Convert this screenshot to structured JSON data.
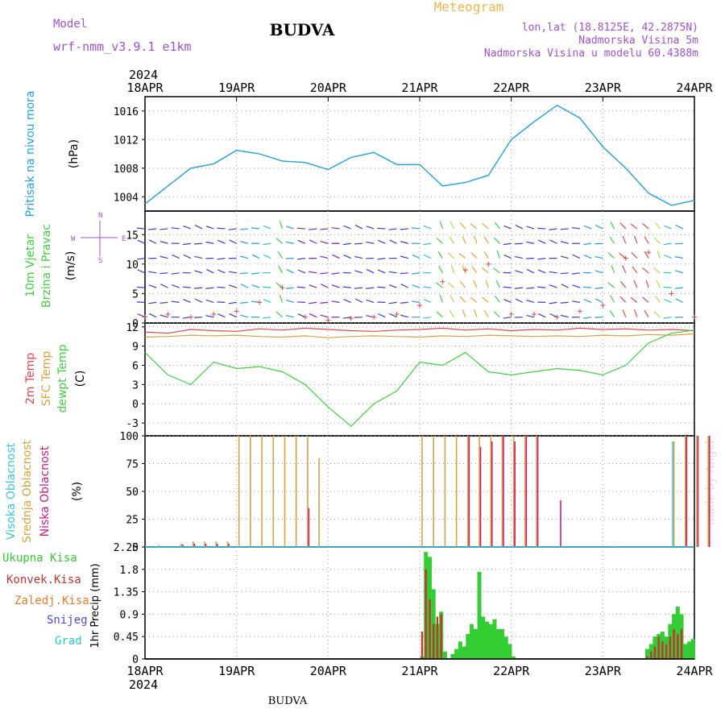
{
  "header": {
    "model_label": "Model",
    "model_name": "wrf-nmm_v3.9.1 e1km",
    "title": "BUDVA",
    "subtitle": "Meteogram",
    "lonlat": "lon,lat (18.8125E, 42.2875N)",
    "altitude": "Nadmorska Visina 5m",
    "model_altitude": "Nadmorska Visina u modelu 60.4388m",
    "footer": "BUDVA",
    "watermark": "made by Angel",
    "year": "2024"
  },
  "colors": {
    "pressure": "#1ea0e6",
    "t2m": "#e6464b",
    "sfc": "#dca03c",
    "dew": "#3cd23c",
    "high_cloud": "#37c8dc",
    "mid_cloud": "#dca03c",
    "low_cloud": "#c81e78",
    "total_precip": "#32cd32",
    "conv_precip": "#c83232",
    "frozen_precip": "#f07828",
    "snow": "#4b4bdc",
    "hail": "#28c8c8",
    "model_text": "#a050d2",
    "title_orange": "#f0b450"
  },
  "x_axis": {
    "ticks": [
      "18APR",
      "19APR",
      "20APR",
      "21APR",
      "22APR",
      "23APR",
      "24APR"
    ],
    "range_hours": [
      0,
      144
    ]
  },
  "chart_data": [
    {
      "type": "line",
      "panel": "pressure",
      "ylabel_side": "Pritisak na nivou mora",
      "ylabel": "(hPa)",
      "yticks": [
        "1004",
        "1008",
        "1012",
        "1016"
      ],
      "ylim": [
        1002,
        1018
      ],
      "x": [
        0,
        6,
        12,
        18,
        24,
        30,
        36,
        42,
        48,
        54,
        60,
        66,
        72,
        78,
        84,
        90,
        96,
        102,
        108,
        114,
        120,
        126,
        132,
        138,
        144
      ],
      "series": [
        {
          "values": [
            1003.0,
            1005.5,
            1008.0,
            1008.6,
            1010.5,
            1010.0,
            1009.0,
            1008.8,
            1007.8,
            1009.5,
            1010.2,
            1008.5,
            1008.5,
            1005.5,
            1006.0,
            1007.0,
            1012.0,
            1014.5,
            1016.8,
            1015.0,
            1011.0,
            1008.0,
            1004.5,
            1002.8,
            1003.5
          ]
        }
      ]
    },
    {
      "type": "scatter",
      "panel": "wind",
      "ylabel_side": "10m Vjetar Brzina i Pravac",
      "ylabel": "(m/s)",
      "compass": [
        "W",
        "E",
        "N",
        "S"
      ],
      "yticks": [
        "0",
        "5",
        "10",
        "15"
      ],
      "ylim": [
        0,
        19
      ],
      "x": [
        0,
        6,
        12,
        18,
        24,
        30,
        36,
        42,
        48,
        54,
        60,
        66,
        72,
        78,
        84,
        90,
        96,
        102,
        108,
        114,
        120,
        126,
        132,
        138,
        144
      ],
      "series": [
        {
          "values": [
            1.0,
            1.5,
            1.0,
            1.5,
            2.0,
            3.5,
            6.0,
            1.0,
            0.5,
            0.8,
            1.0,
            1.5,
            3.0,
            7.0,
            9.0,
            10.0,
            1.5,
            1.5,
            1.0,
            2.0,
            3.0,
            11.0,
            12.0,
            5.0,
            1.0
          ]
        }
      ]
    },
    {
      "type": "line",
      "panel": "temperature",
      "ylabel_side": [
        "2m Temp",
        "SFC Temp",
        "dewpt Temp"
      ],
      "ylabel": "(C)",
      "yticks": [
        "-3",
        "0",
        "3",
        "6",
        "9",
        "12"
      ],
      "ylim": [
        -5,
        12.6
      ],
      "x": [
        0,
        6,
        12,
        18,
        24,
        30,
        36,
        42,
        48,
        54,
        60,
        66,
        72,
        78,
        84,
        90,
        96,
        102,
        108,
        114,
        120,
        126,
        132,
        138,
        144
      ],
      "series": [
        {
          "values": [
            11.2,
            11.0,
            11.6,
            11.4,
            11.3,
            11.7,
            11.5,
            11.8,
            11.6,
            11.4,
            11.3,
            11.5,
            11.6,
            11.8,
            11.5,
            11.7,
            11.4,
            11.6,
            11.5,
            11.8,
            11.6,
            11.7,
            11.5,
            11.6,
            11.4
          ]
        },
        {
          "values": [
            10.4,
            10.5,
            10.7,
            10.6,
            10.7,
            10.5,
            10.4,
            10.6,
            10.3,
            10.5,
            10.6,
            10.5,
            10.4,
            10.6,
            10.5,
            10.7,
            10.6,
            10.5,
            10.6,
            10.5,
            10.7,
            10.6,
            10.8,
            10.7,
            10.9
          ]
        },
        {
          "values": [
            8.0,
            4.5,
            3.0,
            6.5,
            5.5,
            5.8,
            5.0,
            3.0,
            -0.5,
            -3.5,
            0.0,
            2.0,
            6.5,
            6.0,
            8.0,
            5.0,
            4.5,
            5.0,
            5.5,
            5.2,
            4.5,
            6.0,
            9.5,
            11.0,
            11.5
          ]
        }
      ]
    },
    {
      "type": "bar",
      "panel": "clouds",
      "ylabel_side": [
        "Visoka Oblacnost",
        "Srednja Oblacnost",
        "Niska Oblacnost"
      ],
      "ylabel": "(%)",
      "yticks": [
        "0",
        "25",
        "50",
        "75",
        "100"
      ],
      "ylim": [
        0,
        100
      ],
      "note": "series values listed per 3 hours (hour 0..141)",
      "series": [
        {
          "values": [
            0,
            0,
            0,
            2,
            1,
            0,
            0,
            0,
            0,
            0,
            0,
            0,
            0,
            0,
            0,
            0,
            0,
            0,
            0,
            0,
            0,
            0,
            0,
            0,
            0,
            0,
            0,
            0,
            0,
            0,
            0,
            0,
            0,
            0,
            0,
            0,
            0,
            0,
            0,
            0,
            0,
            1,
            0,
            0,
            0,
            0,
            95,
            0,
            0,
            0
          ]
        },
        {
          "values": [
            0,
            2,
            0,
            3,
            5,
            5,
            5,
            5,
            100,
            100,
            100,
            100,
            100,
            100,
            100,
            80,
            0,
            0,
            0,
            0,
            0,
            0,
            0,
            0,
            100,
            100,
            100,
            100,
            100,
            100,
            100,
            100,
            100,
            100,
            100,
            0,
            0,
            0,
            0,
            0,
            0,
            0,
            0,
            0,
            0,
            0,
            95,
            100,
            100,
            100
          ]
        },
        {
          "values": [
            0,
            0,
            0,
            2,
            3,
            3,
            3,
            3,
            0,
            0,
            0,
            0,
            0,
            0,
            35,
            0,
            0,
            0,
            0,
            0,
            0,
            0,
            0,
            0,
            0,
            0,
            0,
            0,
            100,
            90,
            95,
            100,
            95,
            100,
            100,
            0,
            42,
            0,
            0,
            0,
            0,
            0,
            0,
            0,
            0,
            0,
            0,
            100,
            100,
            100
          ]
        }
      ]
    },
    {
      "type": "bar",
      "panel": "precip",
      "ylabel_side": [
        "Ukupna Kisa",
        "Konvek.Kisa",
        "Zaledj.Kisa",
        "Snijeg",
        "Grad"
      ],
      "ylabel": "1hr Precip (mm)",
      "yticks": [
        "0",
        "0.45",
        "0.9",
        "1.35",
        "1.8",
        "2.25"
      ],
      "ylim": [
        0,
        2.25
      ],
      "note": "hourly values listed from hour 72 to hour 143",
      "series": [
        {
          "values": [
            0.05,
            2.15,
            2.05,
            1.4,
            0.7,
            0.95,
            0.15,
            0,
            0.1,
            0.2,
            0.35,
            0.25,
            0.5,
            0.7,
            0.6,
            1.75,
            0.85,
            0.75,
            0.7,
            0.8,
            0.6,
            0.6,
            0.45,
            0.3,
            0.05,
            0,
            0,
            0,
            0,
            0,
            0,
            0,
            0,
            0,
            0,
            0,
            0,
            0,
            0,
            0,
            0,
            0,
            0,
            0,
            0,
            0,
            0,
            0,
            0,
            0,
            0,
            0,
            0,
            0,
            0,
            0,
            0,
            0,
            0,
            0.2,
            0.3,
            0.45,
            0.5,
            0.55,
            0.45,
            0.7,
            0.9,
            1.05,
            0.9,
            0.3,
            0.35,
            0.4
          ]
        },
        {
          "values": [
            0.55,
            1.8,
            1.2,
            0.7,
            0.85,
            0.9,
            0,
            0,
            0,
            0,
            0,
            0,
            0,
            0,
            0,
            0,
            0,
            0,
            0,
            0,
            0,
            0,
            0,
            0,
            0,
            0,
            0,
            0,
            0,
            0,
            0,
            0,
            0,
            0,
            0,
            0,
            0,
            0,
            0,
            0,
            0,
            0,
            0,
            0,
            0,
            0,
            0,
            0,
            0,
            0,
            0,
            0,
            0,
            0,
            0,
            0,
            0,
            0,
            0,
            0.05,
            0.15,
            0.25,
            0.45,
            0.35,
            0.3,
            0.45,
            0.6,
            0.5,
            0.6,
            0,
            0,
            0
          ]
        }
      ]
    }
  ]
}
